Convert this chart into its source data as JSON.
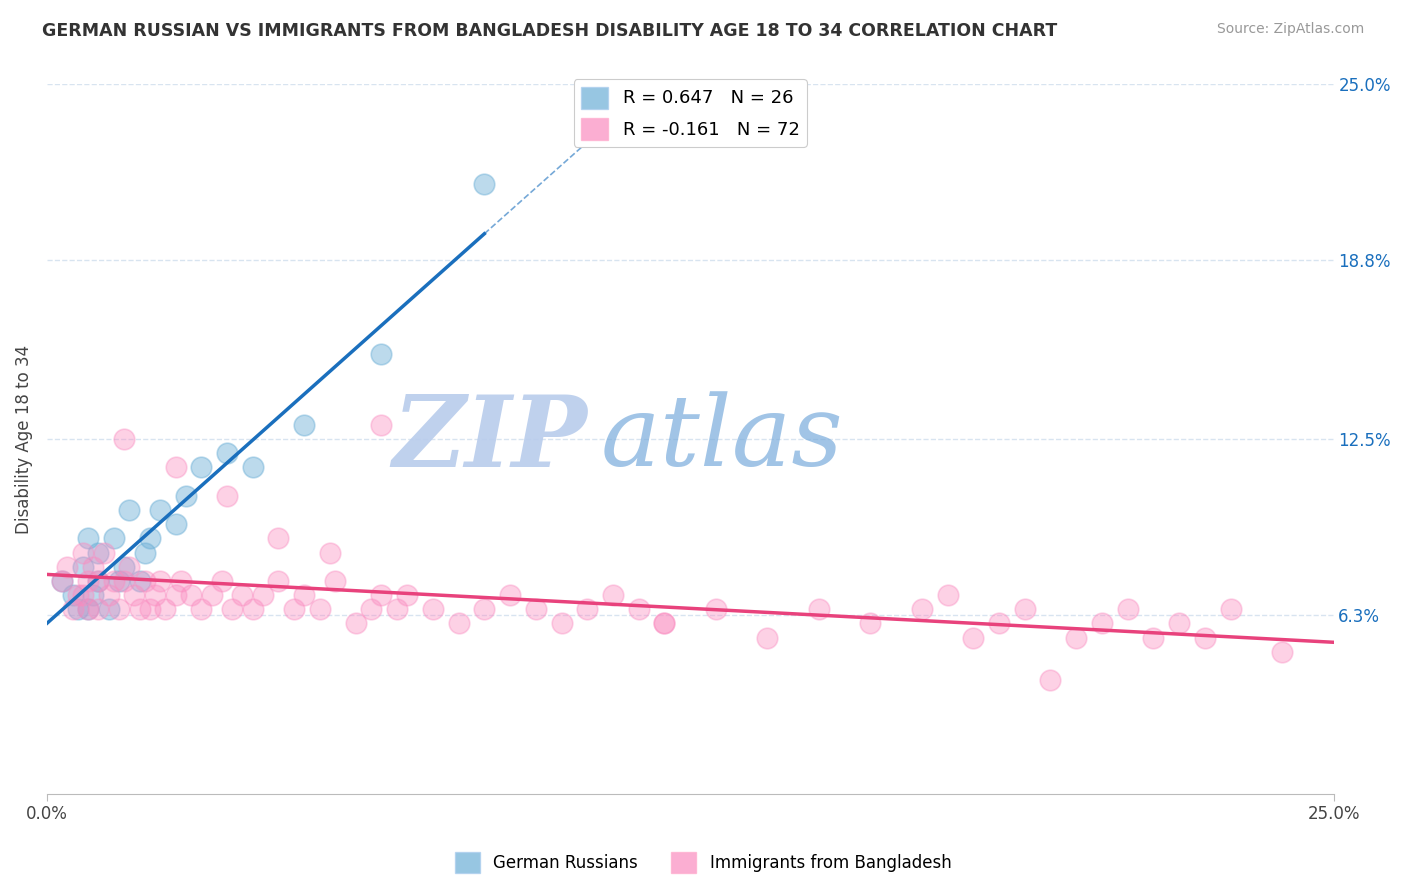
{
  "title": "GERMAN RUSSIAN VS IMMIGRANTS FROM BANGLADESH DISABILITY AGE 18 TO 34 CORRELATION CHART",
  "source": "Source: ZipAtlas.com",
  "ylabel": "Disability Age 18 to 34",
  "xlim": [
    0,
    0.25
  ],
  "ylim": [
    0,
    0.25
  ],
  "xtick_positions": [
    0.0,
    0.25
  ],
  "xtick_labels": [
    "0.0%",
    "25.0%"
  ],
  "ytick_values": [
    0.063,
    0.125,
    0.188,
    0.25
  ],
  "ytick_labels": [
    "6.3%",
    "12.5%",
    "18.8%",
    "25.0%"
  ],
  "legend_labels": [
    "German Russians",
    "Immigrants from Bangladesh"
  ],
  "blue_R": 0.647,
  "blue_N": 26,
  "pink_R": -0.161,
  "pink_N": 72,
  "blue_color": "#6baed6",
  "pink_color": "#fa8cc0",
  "blue_line_color": "#1a6fbd",
  "pink_line_color": "#e8427c",
  "watermark_zip": "ZIP",
  "watermark_atlas": "atlas",
  "watermark_color_zip": "#b8ccec",
  "watermark_color_atlas": "#7aacdc",
  "background_color": "#ffffff",
  "grid_color": "#d8e4f0",
  "blue_scatter_x": [
    0.003,
    0.005,
    0.006,
    0.007,
    0.008,
    0.008,
    0.009,
    0.01,
    0.01,
    0.012,
    0.013,
    0.014,
    0.015,
    0.016,
    0.018,
    0.019,
    0.02,
    0.022,
    0.025,
    0.027,
    0.03,
    0.035,
    0.04,
    0.05,
    0.065,
    0.085
  ],
  "blue_scatter_y": [
    0.075,
    0.07,
    0.065,
    0.08,
    0.065,
    0.09,
    0.07,
    0.075,
    0.085,
    0.065,
    0.09,
    0.075,
    0.08,
    0.1,
    0.075,
    0.085,
    0.09,
    0.1,
    0.095,
    0.105,
    0.115,
    0.12,
    0.115,
    0.13,
    0.155,
    0.215
  ],
  "pink_scatter_x": [
    0.003,
    0.004,
    0.005,
    0.006,
    0.007,
    0.007,
    0.008,
    0.008,
    0.009,
    0.01,
    0.01,
    0.011,
    0.012,
    0.013,
    0.014,
    0.015,
    0.016,
    0.017,
    0.018,
    0.019,
    0.02,
    0.021,
    0.022,
    0.023,
    0.025,
    0.026,
    0.028,
    0.03,
    0.032,
    0.034,
    0.036,
    0.038,
    0.04,
    0.042,
    0.045,
    0.048,
    0.05,
    0.053,
    0.056,
    0.06,
    0.063,
    0.065,
    0.068,
    0.07,
    0.075,
    0.08,
    0.085,
    0.09,
    0.095,
    0.1,
    0.105,
    0.11,
    0.115,
    0.12,
    0.13,
    0.14,
    0.15,
    0.16,
    0.17,
    0.175,
    0.18,
    0.185,
    0.19,
    0.195,
    0.2,
    0.205,
    0.21,
    0.215,
    0.22,
    0.225,
    0.23,
    0.24
  ],
  "pink_scatter_y": [
    0.075,
    0.08,
    0.065,
    0.07,
    0.085,
    0.07,
    0.075,
    0.065,
    0.08,
    0.065,
    0.075,
    0.085,
    0.07,
    0.075,
    0.065,
    0.075,
    0.08,
    0.07,
    0.065,
    0.075,
    0.065,
    0.07,
    0.075,
    0.065,
    0.07,
    0.075,
    0.07,
    0.065,
    0.07,
    0.075,
    0.065,
    0.07,
    0.065,
    0.07,
    0.075,
    0.065,
    0.07,
    0.065,
    0.075,
    0.06,
    0.065,
    0.07,
    0.065,
    0.07,
    0.065,
    0.06,
    0.065,
    0.07,
    0.065,
    0.06,
    0.065,
    0.07,
    0.065,
    0.06,
    0.065,
    0.055,
    0.065,
    0.06,
    0.065,
    0.07,
    0.055,
    0.06,
    0.065,
    0.04,
    0.055,
    0.06,
    0.065,
    0.055,
    0.06,
    0.055,
    0.065,
    0.05
  ],
  "pink_extra_x": [
    0.015,
    0.025,
    0.035,
    0.045,
    0.055,
    0.065,
    0.12
  ],
  "pink_extra_y": [
    0.125,
    0.115,
    0.105,
    0.09,
    0.085,
    0.13,
    0.06
  ]
}
